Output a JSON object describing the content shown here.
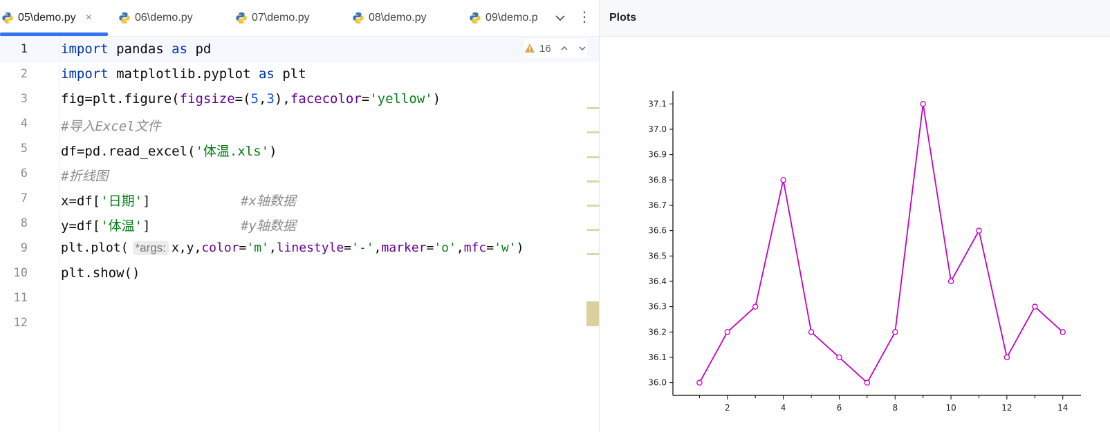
{
  "tabs": [
    {
      "label": "05\\demo.py",
      "active": true
    },
    {
      "label": "06\\demo.py"
    },
    {
      "label": "07\\demo.py"
    },
    {
      "label": "08\\demo.py"
    },
    {
      "label": "09\\demo.p"
    }
  ],
  "tab_close": "×",
  "more_menu": "⋮",
  "inspection": {
    "count": "16"
  },
  "line_numbers": [
    "1",
    "2",
    "3",
    "4",
    "5",
    "6",
    "7",
    "8",
    "9",
    "10",
    "11",
    "12"
  ],
  "code": {
    "l1": {
      "kw1": "import",
      "mod": " pandas ",
      "kw2": "as",
      "alias": " pd"
    },
    "l2": {
      "kw1": "import",
      "mod": " matplotlib.pyplot ",
      "kw2": "as",
      "alias": " plt"
    },
    "l3": {
      "a": "fig=plt.figure(",
      "k1": "figsize",
      "b": "=(",
      "n1": "5",
      "c": ",",
      "n2": "3",
      "d": "),",
      "k2": "facecolor",
      "e": "=",
      "s1": "'yellow'",
      "f": ")"
    },
    "l4": {
      "comment": "#导入Excel文件"
    },
    "l5": {
      "a": "df=pd.read_excel(",
      "s1": "'体温.xls'",
      "b": ")"
    },
    "l6": {
      "comment": "#折线图"
    },
    "l7": {
      "a": "x=df[",
      "s1": "'日期'",
      "b": "]",
      "comment": "#x轴数据"
    },
    "l8": {
      "a": "y=df[",
      "s1": "'体温'",
      "b": "]",
      "comment": "#y轴数据"
    },
    "l9": {
      "a": "plt.plot(",
      "hint": "*args:",
      "b": "x,y,",
      "k1": "color",
      "c": "=",
      "s1": "'m'",
      "d": ",",
      "k2": "linestyle",
      "e": "=",
      "s2": "'-'",
      "f": ",",
      "k3": "marker",
      "g": "=",
      "s3": "'o'",
      "h": ",",
      "k4": "mfc",
      "i": "=",
      "s4": "'w'",
      "j": ")"
    },
    "l10": {
      "a": "plt.show()"
    }
  },
  "plots": {
    "title": "Plots"
  },
  "colors": {
    "line": "#c400c4",
    "accent": "#3574f0"
  },
  "chart_data": {
    "type": "line",
    "x": [
      1,
      2,
      3,
      4,
      5,
      6,
      7,
      8,
      9,
      10,
      11,
      12,
      13,
      14
    ],
    "series": [
      {
        "values": [
          36.0,
          36.2,
          36.3,
          36.8,
          36.2,
          36.1,
          36.0,
          36.2,
          37.1,
          36.4,
          36.6,
          36.1,
          36.3,
          36.2
        ]
      }
    ],
    "xlim": [
      0.05,
      14.65
    ],
    "ylim": [
      35.95,
      37.15
    ],
    "xticks": [
      2,
      4,
      6,
      8,
      10,
      12,
      14
    ],
    "yticks": [
      36.0,
      36.1,
      36.2,
      36.3,
      36.4,
      36.5,
      36.6,
      36.7,
      36.8,
      36.9,
      37.0,
      37.1
    ],
    "xtick_labels": [
      "2",
      "4",
      "6",
      "8",
      "10",
      "12",
      "14"
    ],
    "ytick_labels": [
      "36.0",
      "36.1",
      "36.2",
      "36.3",
      "36.4",
      "36.5",
      "36.6",
      "36.7",
      "36.8",
      "36.9",
      "37.0",
      "37.1"
    ],
    "marker": "o",
    "marker_face": "white",
    "grid": false
  }
}
